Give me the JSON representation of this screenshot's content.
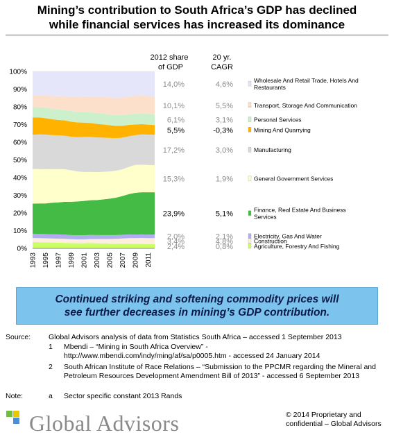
{
  "header": {
    "title_line1": "Mining’s contribution to South Africa’s GDP has declined",
    "title_line2": "while financial services has increased its dominance"
  },
  "table_headers": {
    "share_line1": "2012 share",
    "share_line2": "of GDP",
    "cagr_line1": "20 yr.",
    "cagr_line2": "CAGR"
  },
  "chart_data": {
    "type": "area",
    "stacked": "percent",
    "x": [
      1993,
      1994,
      1995,
      1996,
      1997,
      1998,
      1999,
      2000,
      2001,
      2002,
      2003,
      2004,
      2005,
      2006,
      2007,
      2008,
      2009,
      2010,
      2011,
      2012
    ],
    "xticks": [
      "1993",
      "1995",
      "1997",
      "1999",
      "2001",
      "2003",
      "2005",
      "2007",
      "2009",
      "2011"
    ],
    "yticks": [
      "0%",
      "10%",
      "20%",
      "30%",
      "40%",
      "50%",
      "60%",
      "70%",
      "80%",
      "90%",
      "100%"
    ],
    "ylim": [
      0,
      100
    ],
    "legend_position": "right",
    "series": [
      {
        "name": "Agriculture, Forestry And Fishing",
        "color": "#ccff66",
        "share_2012": "2,4%",
        "cagr": "0,8%",
        "highlight": false,
        "values": [
          3.6,
          3.5,
          3.4,
          3.3,
          3.2,
          3.1,
          3.0,
          2.9,
          2.9,
          3.0,
          2.9,
          2.8,
          2.7,
          2.6,
          2.6,
          2.6,
          2.5,
          2.5,
          2.4,
          2.4
        ]
      },
      {
        "name": "Construction",
        "color": "#fdeedd",
        "share_2012": "3,4%",
        "cagr": "4,8%",
        "highlight": false,
        "values": [
          2.3,
          2.3,
          2.3,
          2.3,
          2.3,
          2.3,
          2.2,
          2.2,
          2.2,
          2.3,
          2.4,
          2.5,
          2.6,
          2.8,
          3.0,
          3.2,
          3.3,
          3.4,
          3.4,
          3.4
        ]
      },
      {
        "name": "Electricity, Gas And Water",
        "color": "#b0aef0",
        "share_2012": "2,0%",
        "cagr": "2,1%",
        "highlight": false,
        "values": [
          2.4,
          2.4,
          2.4,
          2.4,
          2.4,
          2.4,
          2.3,
          2.3,
          2.3,
          2.3,
          2.2,
          2.2,
          2.2,
          2.1,
          2.1,
          2.1,
          2.0,
          2.0,
          2.0,
          2.0
        ]
      },
      {
        "name": "Finance, Real Estate And Business Services",
        "color": "#44bb44",
        "share_2012": "23,9%",
        "cagr": "5,1%",
        "highlight": true,
        "values": [
          17.0,
          17.2,
          17.3,
          17.8,
          18.1,
          18.5,
          18.8,
          19.1,
          19.4,
          19.6,
          19.8,
          20.2,
          20.6,
          21.2,
          21.9,
          22.8,
          23.6,
          23.8,
          23.9,
          23.9
        ]
      },
      {
        "name": "General Government Services",
        "color": "#ffffcc",
        "share_2012": "15,3%",
        "cagr": "1,9%",
        "highlight": false,
        "values": [
          19.6,
          19.4,
          19.3,
          19.0,
          18.8,
          18.4,
          17.8,
          17.0,
          16.4,
          16.0,
          15.8,
          15.6,
          15.4,
          15.2,
          15.1,
          15.4,
          15.8,
          15.6,
          15.4,
          15.3
        ]
      },
      {
        "name": "Manufacturing",
        "color": "#d9d9d9",
        "share_2012": "17,2%",
        "cagr": "3,0%",
        "highlight": false,
        "values": [
          19.3,
          19.6,
          19.6,
          19.2,
          19.1,
          19.0,
          19.0,
          19.4,
          19.8,
          19.8,
          19.6,
          19.3,
          18.9,
          18.4,
          17.9,
          17.3,
          16.8,
          17.1,
          17.2,
          17.2
        ]
      },
      {
        "name": "Mining And Quarrying",
        "color": "#ffb300",
        "share_2012": "5,5%",
        "cagr": "-0,3%",
        "highlight": true,
        "values": [
          9.8,
          9.6,
          9.3,
          9.0,
          8.7,
          8.6,
          8.5,
          8.3,
          8.1,
          7.9,
          7.7,
          7.4,
          7.2,
          6.9,
          6.7,
          6.4,
          6.0,
          5.8,
          5.6,
          5.5
        ]
      },
      {
        "name": "Personal Services",
        "color": "#ccf0cc",
        "share_2012": "6,1%",
        "cagr": "3,1%",
        "highlight": false,
        "values": [
          5.8,
          5.8,
          5.9,
          5.9,
          5.9,
          6.0,
          6.0,
          6.0,
          6.0,
          6.0,
          6.1,
          6.1,
          6.1,
          6.1,
          6.1,
          6.1,
          6.1,
          6.1,
          6.1,
          6.1
        ]
      },
      {
        "name": "Transport, Storage And Communication",
        "color": "#fde0cc",
        "share_2012": "10,1%",
        "cagr": "5,5%",
        "highlight": false,
        "values": [
          6.5,
          6.7,
          6.9,
          7.2,
          7.5,
          7.8,
          8.2,
          8.6,
          8.9,
          9.1,
          9.3,
          9.5,
          9.7,
          9.8,
          9.9,
          10.0,
          10.1,
          10.1,
          10.1,
          10.1
        ]
      },
      {
        "name": "Wholesale And Retail Trade, Hotels And Restaurants",
        "color": "#e6e6fa",
        "share_2012": "14,0%",
        "cagr": "4,6%",
        "highlight": false,
        "values": [
          13.7,
          13.5,
          13.6,
          13.9,
          14.0,
          13.9,
          14.2,
          14.2,
          14.0,
          14.0,
          14.2,
          14.4,
          14.6,
          14.9,
          14.7,
          14.1,
          13.8,
          13.6,
          13.9,
          14.0
        ]
      }
    ]
  },
  "callout": {
    "line1": "Continued striking and softening commodity prices will",
    "line2": "see further decreases in mining’s GDP contribution."
  },
  "notes": {
    "source_label": "Source:",
    "source_text": "Global Advisors analysis of data from Statistics South Africa – accessed 1 September 2013",
    "ref1_num": "1",
    "ref1_line1": "Mbendi – “Mining in South Africa Overview” -",
    "ref1_line2": "http://www.mbendi.com/indy/ming/af/sa/p0005.htm  - accessed 24 January 2014",
    "ref2_num": "2",
    "ref2_text": "South African Institute of Race Relations – “Submission to the PPCMR regarding the Mineral and Petroleum Resources Development Amendment Bill of 2013”  - accessed 6 September 2013",
    "note_label": "Note:",
    "note_num": "a",
    "note_text": "Sector specific constant 2013 Rands"
  },
  "footer": {
    "logo_text": "Global Advisors",
    "copyright": "© 2014 Proprietary and confidential – Global Advisors"
  },
  "colors": {
    "highlight_text": "#000000",
    "muted_text": "#8c8c8c",
    "callout_bg": "#7cc4ee",
    "logo_green": "#6fbf3a",
    "logo_yellow": "#e8c800",
    "logo_blue": "#4a90d9"
  }
}
